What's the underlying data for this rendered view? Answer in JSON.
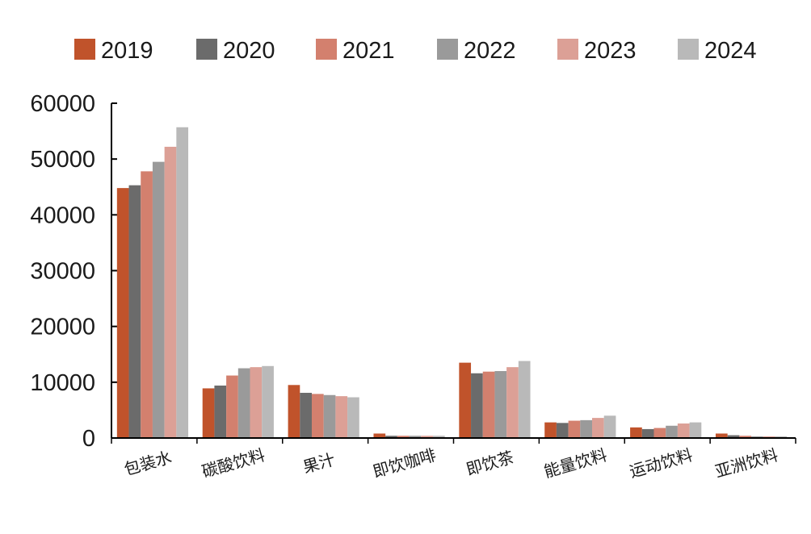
{
  "colors": {
    "2019": "#c0532b",
    "2020": "#6b6b6b",
    "2021": "#d3806e",
    "2022": "#9a9a9a",
    "2023": "#dca096",
    "2024": "#b9b9b9"
  },
  "chart_data": {
    "type": "bar",
    "title": "",
    "xlabel": "",
    "ylabel": "",
    "ylim": [
      0,
      60000
    ],
    "yticks": [
      "0",
      "10000",
      "20000",
      "30000",
      "40000",
      "50000",
      "60000"
    ],
    "grid": false,
    "legend_position": "top",
    "categories": [
      "包装水",
      "碳酸饮料",
      "果汁",
      "即饮咖啡",
      "即饮茶",
      "能量饮料",
      "运动饮料",
      "亚洲饮料"
    ],
    "series": [
      {
        "name": "2019",
        "values": [
          44800,
          8900,
          9500,
          800,
          13500,
          2800,
          1900,
          800
        ]
      },
      {
        "name": "2020",
        "values": [
          45300,
          9400,
          8100,
          400,
          11600,
          2700,
          1600,
          500
        ]
      },
      {
        "name": "2021",
        "values": [
          47800,
          11200,
          7900,
          400,
          11900,
          3100,
          1800,
          400
        ]
      },
      {
        "name": "2022",
        "values": [
          49500,
          12500,
          7700,
          400,
          12000,
          3200,
          2200,
          300
        ]
      },
      {
        "name": "2023",
        "values": [
          52200,
          12700,
          7500,
          400,
          12700,
          3600,
          2600,
          300
        ]
      },
      {
        "name": "2024",
        "values": [
          55700,
          12900,
          7300,
          400,
          13800,
          4000,
          2800,
          300
        ]
      }
    ]
  }
}
